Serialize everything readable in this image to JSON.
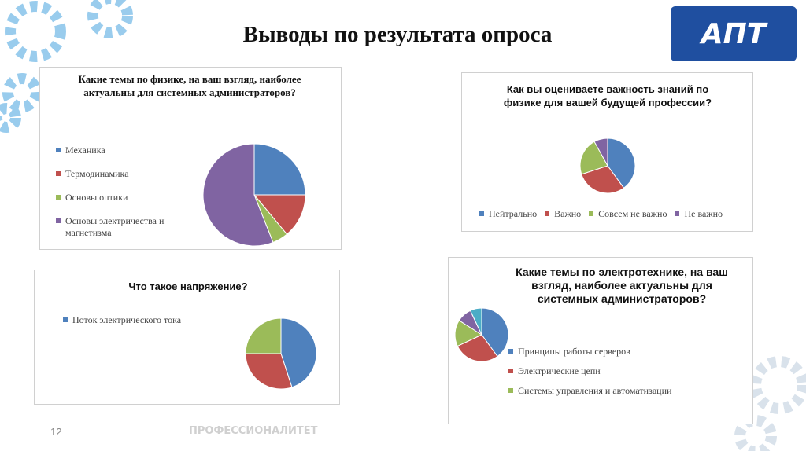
{
  "title": "Выводы по результата опроса",
  "logo": "АПТ",
  "footer": "ПРОФЕССИОНАЛИТЕТ",
  "page_number": 12,
  "chart_data": [
    {
      "type": "pie",
      "title": "Какие темы по физике, на ваш взгляд, наиболее актуальны для системных администраторов?",
      "categories": [
        "Механика",
        "Термодинамика",
        "Основы оптики",
        "Основы электричества и магнетизма"
      ],
      "values": [
        25,
        14,
        5,
        56
      ],
      "colors": [
        "#4f81bd",
        "#c0504d",
        "#9bbb59",
        "#8064a2"
      ],
      "legend": "left"
    },
    {
      "type": "pie",
      "title": "Как вы оцениваете важность знаний по физике для вашей будущей профессии?",
      "categories": [
        "Нейтрально",
        "Важно",
        "Совсем не важно",
        "Не важно"
      ],
      "values": [
        40,
        30,
        22,
        8
      ],
      "colors": [
        "#4f81bd",
        "#c0504d",
        "#9bbb59",
        "#8064a2"
      ],
      "legend": "bottom"
    },
    {
      "type": "pie",
      "title": "Что такое напряжение?",
      "categories": [
        "Поток электрического тока",
        null,
        null
      ],
      "values": [
        45,
        30,
        25
      ],
      "colors": [
        "#4f81bd",
        "#c0504d",
        "#9bbb59"
      ],
      "legend": "left"
    },
    {
      "type": "pie",
      "title": "Какие темы по электротехнике, на ваш взгляд, наиболее актуальны для системных администраторов?",
      "categories": [
        "Принципы работы серверов",
        "Электрические цепи",
        "Системы управления и автоматизации",
        null,
        null
      ],
      "values": [
        40,
        28,
        16,
        9,
        7
      ],
      "colors": [
        "#4f81bd",
        "#c0504d",
        "#9bbb59",
        "#8064a2",
        "#4bacc6"
      ],
      "legend": "right"
    }
  ]
}
